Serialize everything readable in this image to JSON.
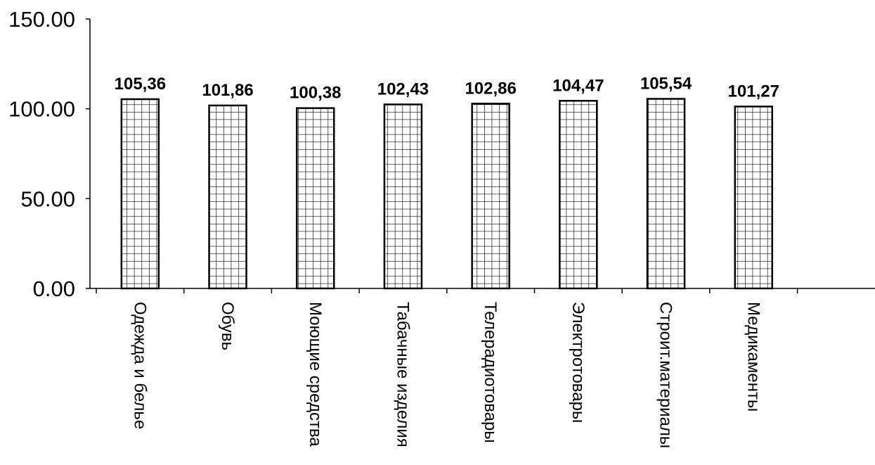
{
  "chart_data": {
    "type": "bar",
    "categories": [
      "Одежда и белье",
      "Обувь",
      "Моющие средства",
      "Табачные изделия",
      "Телерадиотовары",
      "Электротовары",
      "Строит.материалы",
      "Медикаменты"
    ],
    "values": [
      105.36,
      101.86,
      100.38,
      102.43,
      102.86,
      104.47,
      105.54,
      101.27
    ],
    "data_labels": [
      "105,36",
      "101,86",
      "100,38",
      "102,43",
      "102,86",
      "104,47",
      "105,54",
      "101,27"
    ],
    "y_ticks": [
      "0.00",
      "50.00",
      "100.00",
      "150.00"
    ],
    "ylim": [
      0,
      150
    ],
    "grid": false,
    "legend": "none",
    "bar_pattern": "grid-hatch",
    "colors": {
      "bar_fill": "#ffffff",
      "bar_stroke": "#000000"
    }
  }
}
